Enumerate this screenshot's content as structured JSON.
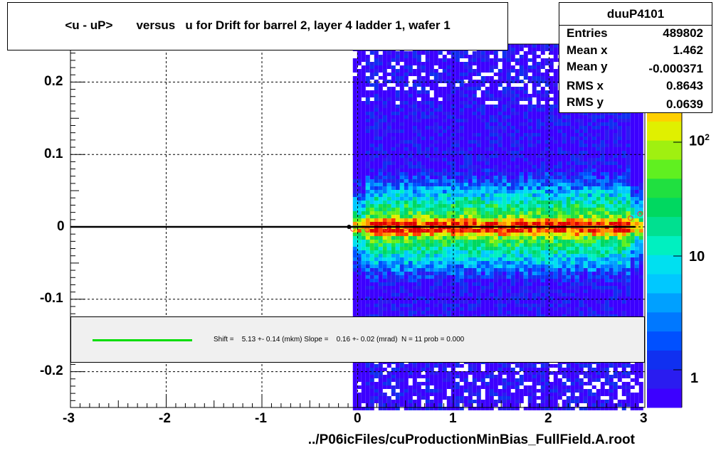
{
  "title": "<u - uP>       versus   u for Drift for barrel 2, layer 4 ladder 1, wafer 1",
  "stats": {
    "name": "duuP4101",
    "rows": [
      {
        "label": "Entries",
        "value": "489802"
      },
      {
        "label": "Mean x",
        "value": "1.462"
      },
      {
        "label": "Mean y",
        "value": "-0.000371"
      },
      {
        "label": "RMS x",
        "value": "0.8643"
      },
      {
        "label": "RMS y",
        "value": "0.0639"
      }
    ]
  },
  "fit_legend": "Shift =    5.13 +- 0.14 (mkm) Slope =    0.16 +- 0.02 (mrad)  N = 11 prob = 0.000",
  "xlabel": "../P06icFiles/cuProductionMinBias_FullField.A.root",
  "colorbar": {
    "labels": [
      {
        "base": "10",
        "exp": "2"
      },
      {
        "base": "10",
        "exp": ""
      },
      {
        "base": "1",
        "exp": ""
      }
    ]
  },
  "chart_data": {
    "type": "heatmap",
    "title": "<u - uP>       versus   u for Drift for barrel 2, layer 4 ladder 1, wafer 1",
    "xlim": [
      -3,
      3
    ],
    "ylim": [
      -0.25,
      0.25
    ],
    "x_ticks": [
      "-3",
      "-2",
      "-1",
      "0",
      "1",
      "2",
      "3"
    ],
    "y_ticks": [
      "0.2",
      "0.1",
      "0",
      "-0.1",
      "-0.2"
    ],
    "grid": true,
    "z_scale": "log",
    "occupied_x_range": [
      -0.05,
      2.95
    ],
    "band_center_y": 0.0,
    "profile_points": {
      "x": [
        -0.05,
        0.1,
        0.3,
        0.5,
        0.7,
        0.9,
        1.1,
        1.3,
        1.5,
        1.7,
        1.9,
        2.1,
        2.3,
        2.5,
        2.7,
        2.85,
        2.95
      ],
      "y": [
        -0.003,
        -0.004,
        -0.003,
        -0.002,
        -0.002,
        -0.001,
        -0.001,
        0.0,
        -0.001,
        -0.002,
        -0.001,
        0.0,
        -0.001,
        0.0,
        0.0,
        0.012,
        0.018
      ]
    },
    "fit_line": {
      "x_range": [
        -3,
        2.9
      ],
      "y": 0.0,
      "color": "#000000"
    }
  }
}
